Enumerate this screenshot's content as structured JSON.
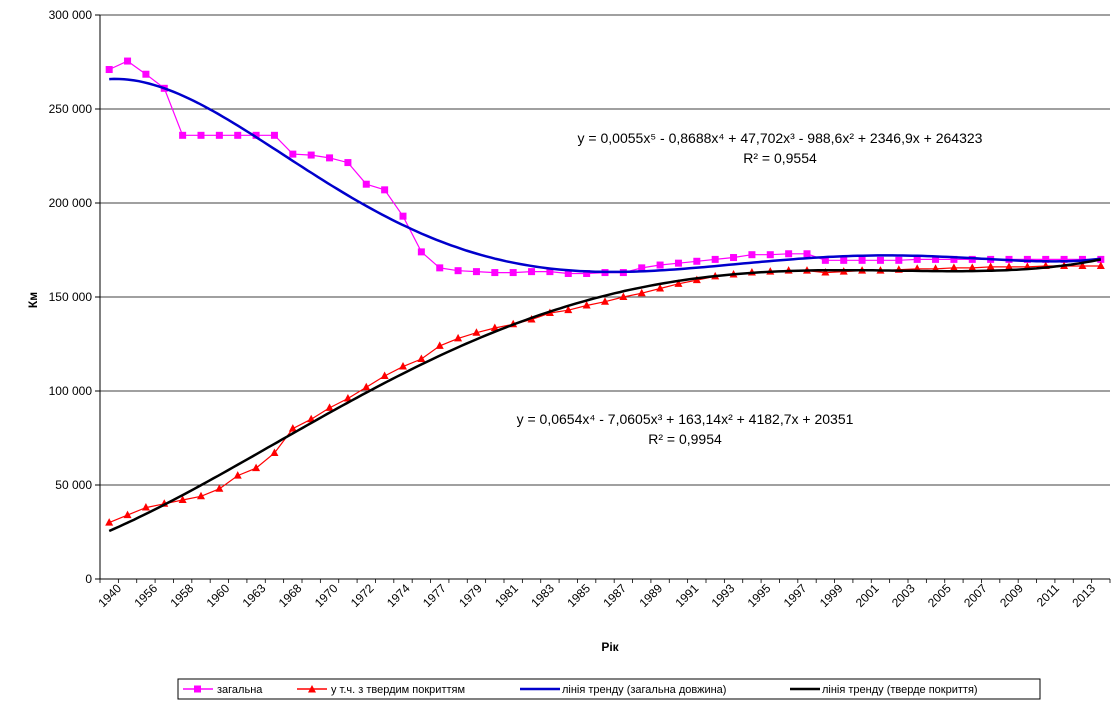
{
  "chart_data": {
    "type": "line",
    "title": "",
    "xlabel": "Рік",
    "ylabel": "Км",
    "ylim": [
      0,
      300000
    ],
    "y_ticks": [
      "0",
      "50 000",
      "100 000",
      "150 000",
      "200 000",
      "250 000",
      "300 000"
    ],
    "y_tick_values": [
      0,
      50000,
      100000,
      150000,
      200000,
      250000,
      300000
    ],
    "x_tick_labels": [
      "1940",
      "1956",
      "1958",
      "1960",
      "1963",
      "1968",
      "1970",
      "1972",
      "1974",
      "1977",
      "1979",
      "1981",
      "1983",
      "1985",
      "1987",
      "1989",
      "1991",
      "1993",
      "1995",
      "1997",
      "1999",
      "2001",
      "2003",
      "2005",
      "2007",
      "2009",
      "2011",
      "2013"
    ],
    "grid": "horizontal",
    "legend_position": "bottom",
    "colors": {
      "total": "#ff00ff",
      "paved": "#ff0000",
      "trend_total": "#0000cc",
      "trend_paved": "#000000"
    },
    "series": [
      {
        "name": "загальна",
        "marker": "square",
        "values": [
          271000,
          275500,
          268500,
          261000,
          236000,
          236000,
          236000,
          236000,
          236000,
          236000,
          226000,
          225500,
          224000,
          221500,
          210000,
          207000,
          193000,
          174000,
          165500,
          164000,
          163500,
          163000,
          163000,
          163500,
          163500,
          162500,
          162500,
          163000,
          163000,
          165500,
          167000,
          168000,
          169000,
          170000,
          171000,
          172500,
          172500,
          173000,
          173000,
          169500,
          169500,
          169500,
          169500,
          169500,
          170000,
          170000,
          170000,
          170000,
          170000,
          170000,
          170000,
          170000,
          170000,
          170000,
          170000
        ]
      },
      {
        "name": "у т.ч. з твердим покриттям",
        "marker": "triangle",
        "values": [
          30000,
          34000,
          38000,
          40000,
          42000,
          44000,
          48000,
          55000,
          59000,
          67000,
          80000,
          85000,
          91000,
          96000,
          102000,
          108000,
          113000,
          117000,
          124000,
          128000,
          131000,
          133500,
          135500,
          138000,
          141500,
          143000,
          145500,
          147500,
          150000,
          152000,
          154500,
          157000,
          159000,
          161000,
          162000,
          163000,
          163500,
          164000,
          164000,
          163000,
          163500,
          164000,
          164000,
          164500,
          165000,
          165000,
          165500,
          165500,
          166000,
          166000,
          166000,
          166500,
          166500,
          166500,
          166500
        ]
      },
      {
        "name": "лінія тренду (загальна довжина)",
        "trendline": true,
        "equation": "y = 0,0055x⁵ - 0,8688x⁴ + 47,702x³ - 988,6x² + 2346,9x + 264323",
        "r2": "R² = 0,9554"
      },
      {
        "name": "лінія тренду (тверде покриття)",
        "trendline": true,
        "equation": "y = 0,0654x⁴ - 7,0605x³ + 163,14x² + 4182,7x + 20351",
        "r2": "R² = 0,9954"
      }
    ]
  }
}
